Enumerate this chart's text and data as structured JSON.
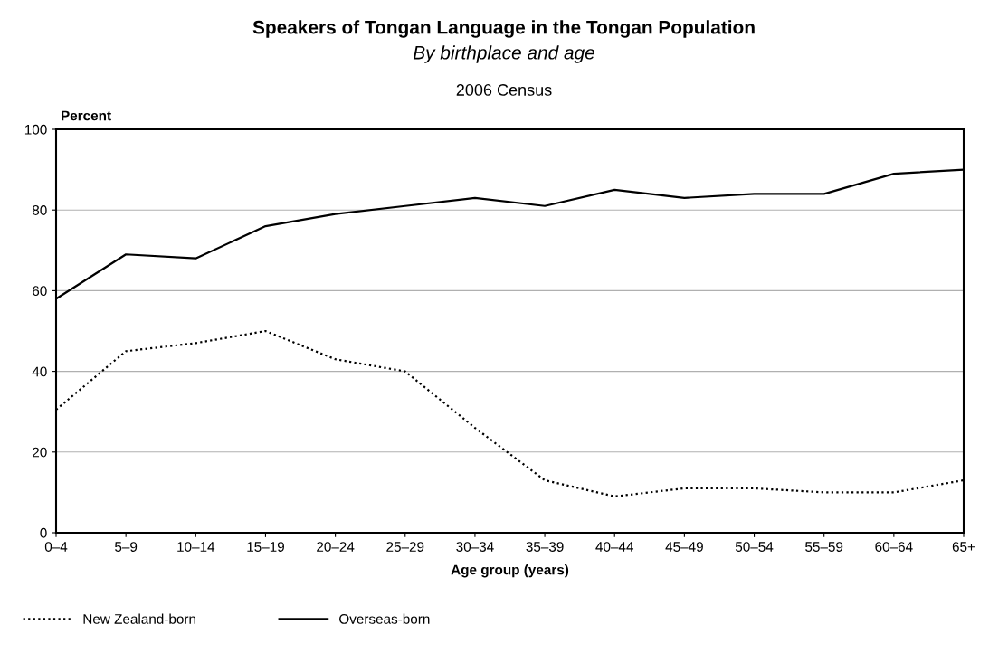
{
  "chart_data": {
    "type": "line",
    "title": "Speakers of Tongan Language in the Tongan Population",
    "subtitle": "By birthplace and age",
    "annotations": [
      "2006 Census"
    ],
    "xlabel": "Age group (years)",
    "ylabel": "Percent",
    "categories": [
      "0–4",
      "5–9",
      "10–14",
      "15–19",
      "20–24",
      "25–29",
      "30–34",
      "35–39",
      "40–44",
      "45–49",
      "50–54",
      "55–59",
      "60–64",
      "65+"
    ],
    "series": [
      {
        "name": "New Zealand-born",
        "color": "#000000",
        "line_style": "dotted",
        "values": [
          30.5,
          45,
          47,
          50,
          43,
          40,
          26,
          13,
          9,
          11,
          11,
          10,
          10,
          13
        ]
      },
      {
        "name": "Overseas-born",
        "color": "#000000",
        "line_style": "solid",
        "values": [
          58,
          69,
          68,
          76,
          79,
          81,
          83,
          81,
          85,
          83,
          84,
          84,
          89,
          90
        ]
      }
    ],
    "ylim": [
      0,
      100
    ],
    "yticks": [
      0,
      20,
      40,
      60,
      80,
      100
    ],
    "grid": "y",
    "legend": "bottom left",
    "marker": "none"
  }
}
